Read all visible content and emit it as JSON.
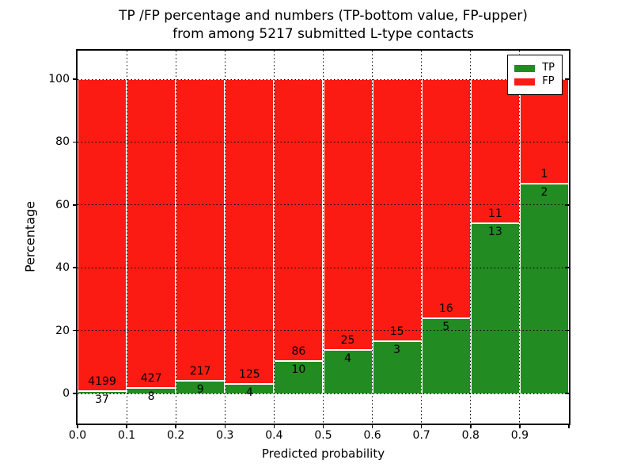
{
  "chart_data": {
    "type": "bar",
    "stacked": true,
    "title": "TP /FP percentage and numbers (TP-bottom value, FP-upper)\nfrom among 5217 submitted L-type contacts",
    "title_lines": [
      "TP /FP percentage and numbers (TP-bottom value, FP-upper)",
      "from among 5217 submitted L-type contacts"
    ],
    "xlabel": "Predicted probability",
    "ylabel": "Percentage",
    "xlim": [
      0.0,
      1.0
    ],
    "ylim": [
      -10,
      110
    ],
    "bar_bin_width": 0.1,
    "grid": true,
    "grid_style": "dotted, drawn above bars",
    "xticks": [
      0.0,
      0.1,
      0.2,
      0.3,
      0.4,
      0.5,
      0.6,
      0.7,
      0.8,
      0.9
    ],
    "xtick_labels": [
      "0.0",
      "0.1",
      "0.2",
      "0.3",
      "0.4",
      "0.5",
      "0.6",
      "0.7",
      "0.8",
      "0.9"
    ],
    "yticks": [
      0,
      20,
      40,
      60,
      80,
      100
    ],
    "ytick_labels": [
      "0",
      "20",
      "40",
      "60",
      "80",
      "100"
    ],
    "bar_total_percent": 100,
    "value_note": "labels show raw counts; TP count below segment boundary, FP count above; bar heights are tp/(tp+fp)*100 and fp/(tp+fp)*100",
    "series": [
      {
        "name": "TP",
        "color": "#228b22",
        "counts": [
          37,
          8,
          9,
          4,
          10,
          4,
          3,
          5,
          13,
          2
        ]
      },
      {
        "name": "FP",
        "color": "#fb1b12",
        "counts": [
          4199,
          427,
          217,
          125,
          86,
          25,
          15,
          16,
          11,
          1
        ]
      }
    ],
    "total_contacts": 5217,
    "legend": {
      "position": "upper right",
      "entries": [
        {
          "label": "TP",
          "color": "#228b22"
        },
        {
          "label": "FP",
          "color": "#fb1b12"
        }
      ]
    },
    "colors": {
      "tp_green": "#228b22",
      "fp_red": "#fb1b12",
      "bar_edge": "#ffffff",
      "axes": "#000000",
      "background": "#ffffff"
    }
  }
}
